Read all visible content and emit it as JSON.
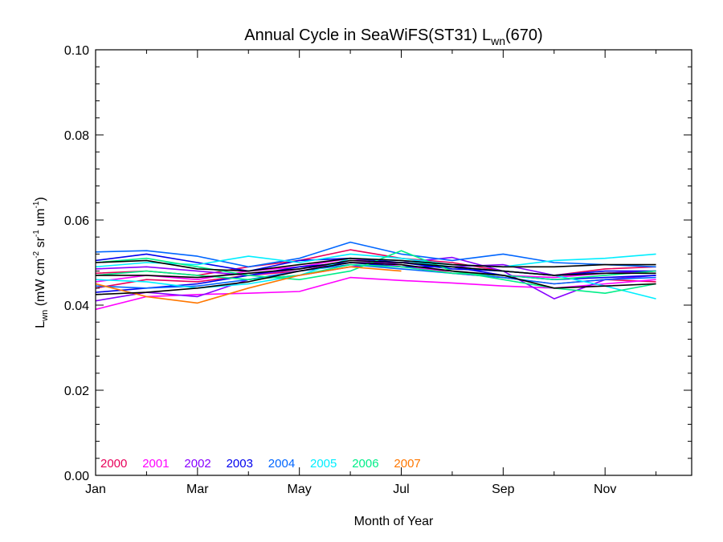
{
  "chart_data": {
    "type": "line",
    "title_main": "Annual Cycle in SeaWiFS(ST31) L",
    "title_sub": "wn",
    "title_tail": "(670)",
    "xlabel": "Month of Year",
    "ylabel_L": "L",
    "ylabel_sub": "wn",
    "ylabel_units_1": " (mW cm",
    "ylabel_sup_1": "-2",
    "ylabel_units_2": " sr",
    "ylabel_sup_2": "-1",
    "ylabel_units_3": " um",
    "ylabel_sup_3": "-1",
    "ylabel_units_4": ")",
    "xlim": [
      1,
      12.7
    ],
    "ylim": [
      0,
      0.1
    ],
    "x_ticks": [
      1,
      3,
      5,
      7,
      9,
      11
    ],
    "x_tick_labels": [
      "Jan",
      "Mar",
      "May",
      "Jul",
      "Sep",
      "Nov"
    ],
    "y_ticks": [
      0.0,
      0.02,
      0.04,
      0.06,
      0.08,
      0.1
    ],
    "y_tick_labels": [
      "0.00",
      "0.02",
      "0.04",
      "0.06",
      "0.08",
      "0.10"
    ],
    "grid": false,
    "legend_position": "bottom-left",
    "legend": [
      {
        "name": "2000",
        "color": "#e8005a"
      },
      {
        "name": "2001",
        "color": "#ff00ff"
      },
      {
        "name": "2002",
        "color": "#8800ff"
      },
      {
        "name": "2003",
        "color": "#0000ee"
      },
      {
        "name": "2004",
        "color": "#0066ff"
      },
      {
        "name": "2005",
        "color": "#00eeff"
      },
      {
        "name": "2006",
        "color": "#00ee88"
      },
      {
        "name": "2007",
        "color": "#ff7700"
      }
    ],
    "x": [
      1,
      2,
      3,
      4,
      5,
      6,
      7,
      8,
      9,
      10,
      11,
      12
    ],
    "series": [
      {
        "color": "#e8005a",
        "values": [
          0.044,
          0.046,
          0.0455,
          0.047,
          0.048,
          0.05,
          0.0495,
          0.0475,
          0.0465,
          0.045,
          0.046,
          0.0455
        ]
      },
      {
        "color": "#e8005a",
        "values": [
          0.0475,
          0.048,
          0.047,
          0.049,
          0.0505,
          0.053,
          0.051,
          0.05,
          0.048,
          0.047,
          0.0485,
          0.049
        ]
      },
      {
        "color": "#ff00ff",
        "values": [
          0.039,
          0.042,
          0.0425,
          0.0428,
          0.0432,
          0.0465,
          0.0458,
          0.0452,
          0.0445,
          0.044,
          0.045,
          0.046
        ]
      },
      {
        "color": "#ff00ff",
        "values": [
          0.0455,
          0.047,
          0.046,
          0.048,
          0.049,
          0.051,
          0.049,
          0.048,
          0.047,
          0.0465,
          0.0475,
          0.048
        ]
      },
      {
        "color": "#8800ff",
        "values": [
          0.041,
          0.043,
          0.042,
          0.046,
          0.047,
          0.049,
          0.05,
          0.0512,
          0.048,
          0.0415,
          0.046,
          0.047
        ]
      },
      {
        "color": "#8800ff",
        "values": [
          0.0485,
          0.049,
          0.048,
          0.047,
          0.0485,
          0.05,
          0.05,
          0.049,
          0.0495,
          0.047,
          0.0475,
          0.048
        ]
      },
      {
        "color": "#0000ee",
        "values": [
          0.0505,
          0.052,
          0.05,
          0.048,
          0.0505,
          0.051,
          0.05,
          0.0485,
          0.048,
          0.047,
          0.048,
          0.048
        ]
      },
      {
        "color": "#0000ee",
        "values": [
          0.043,
          0.044,
          0.045,
          0.047,
          0.049,
          0.05,
          0.049,
          0.049,
          0.047,
          0.046,
          0.0465,
          0.047
        ]
      },
      {
        "color": "#0066ff",
        "values": [
          0.0525,
          0.0528,
          0.0515,
          0.049,
          0.051,
          0.0548,
          0.052,
          0.0505,
          0.052,
          0.05,
          0.0495,
          0.049
        ]
      },
      {
        "color": "#0066ff",
        "values": [
          0.0445,
          0.044,
          0.0445,
          0.046,
          0.048,
          0.0495,
          0.0485,
          0.0475,
          0.0465,
          0.045,
          0.046,
          0.0465
        ]
      },
      {
        "color": "#00eeff",
        "values": [
          0.049,
          0.05,
          0.0495,
          0.0515,
          0.05,
          0.052,
          0.051,
          0.0495,
          0.049,
          0.0505,
          0.051,
          0.052
        ]
      },
      {
        "color": "#00eeff",
        "values": [
          0.046,
          0.0455,
          0.044,
          0.045,
          0.047,
          0.051,
          0.0505,
          0.049,
          0.048,
          0.047,
          0.0445,
          0.0415
        ]
      },
      {
        "color": "#00ee88",
        "values": [
          0.05,
          0.051,
          0.049,
          0.047,
          0.046,
          0.048,
          0.0528,
          0.048,
          0.046,
          0.044,
          0.0428,
          0.045
        ]
      },
      {
        "color": "#00ee88",
        "values": [
          0.047,
          0.048,
          0.047,
          0.046,
          0.047,
          0.0495,
          0.049,
          0.0475,
          0.047,
          0.046,
          0.047,
          0.048
        ]
      },
      {
        "color": "#ff7700",
        "values": [
          0.045,
          0.042,
          0.0405,
          0.044,
          0.047,
          0.049,
          0.048,
          null,
          null,
          null,
          null,
          null
        ]
      },
      {
        "color": "#000000",
        "values": [
          0.0425,
          0.043,
          0.044,
          0.0455,
          0.048,
          0.05,
          0.0495,
          0.048,
          0.047,
          0.044,
          0.0445,
          0.045
        ]
      },
      {
        "color": "#000000",
        "values": [
          0.047,
          0.047,
          0.0465,
          0.0475,
          0.0485,
          0.0505,
          0.05,
          0.049,
          0.048,
          0.047,
          0.0475,
          0.0475
        ]
      },
      {
        "color": "#000000",
        "values": [
          0.05,
          0.0505,
          0.0485,
          0.048,
          0.0495,
          0.051,
          0.0505,
          0.0495,
          0.049,
          0.049,
          0.0495,
          0.0495
        ]
      }
    ]
  }
}
